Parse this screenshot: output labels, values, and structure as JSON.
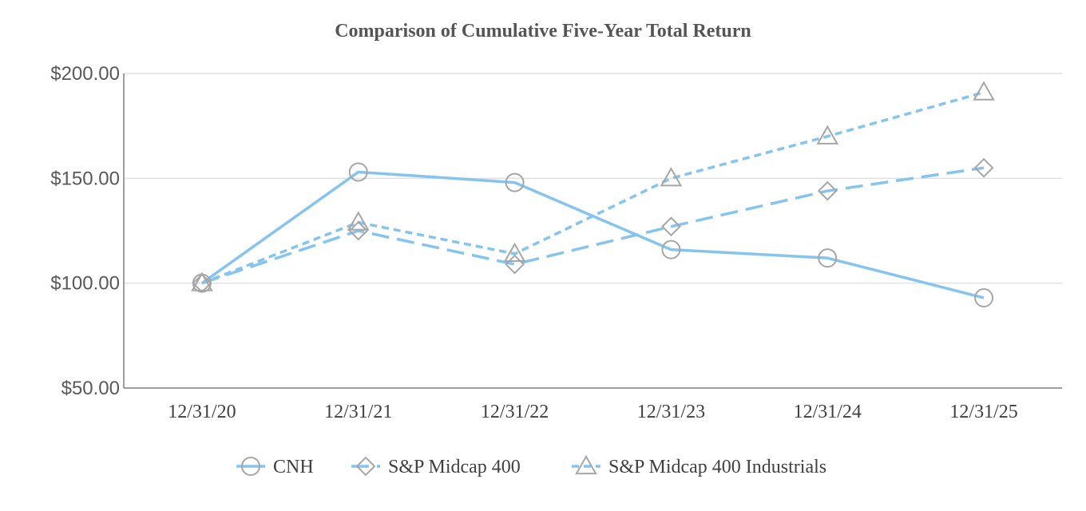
{
  "chart_data": {
    "type": "line",
    "title": "Comparison of Cumulative Five-Year Total Return",
    "categories": [
      "12/31/20",
      "12/31/21",
      "12/31/22",
      "12/31/23",
      "12/31/24",
      "12/31/25"
    ],
    "yticks": [
      "$50.00",
      "$100.00",
      "$150.00",
      "$200.00"
    ],
    "ytick_values": [
      50,
      100,
      150,
      200
    ],
    "ylim": [
      50,
      200
    ],
    "grid": "horizontal",
    "legend_position": "bottom",
    "series": [
      {
        "name": "CNH",
        "values": [
          100,
          153,
          148,
          116,
          112,
          93
        ],
        "color": "#85C4EE",
        "dash": "solid",
        "marker": "circle"
      },
      {
        "name": "S&P Midcap 400",
        "values": [
          100,
          125,
          109,
          127,
          144,
          155
        ],
        "color": "#85C4EE",
        "dash": "long-dash",
        "marker": "diamond"
      },
      {
        "name": "S&P Midcap 400 Industrials",
        "values": [
          100,
          129,
          114,
          150,
          170,
          191
        ],
        "color": "#85C4EE",
        "dash": "short-dash",
        "marker": "triangle"
      }
    ],
    "marker_color": "#A6A6A6",
    "gridline_color": "#E0E0E0",
    "axis_color": "#7F7F7F"
  }
}
